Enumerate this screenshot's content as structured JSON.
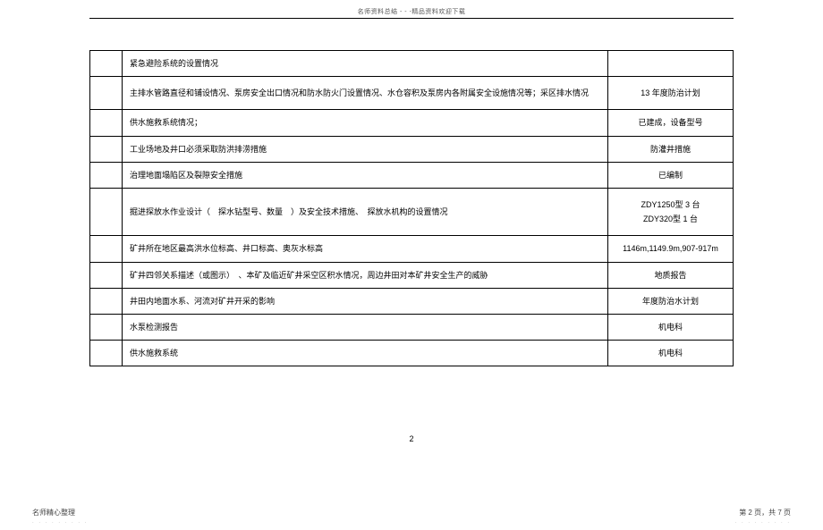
{
  "header": {
    "text": "名师资料总结 - - -精品资料欢迎下载"
  },
  "table": {
    "rows": [
      {
        "desc": "紧急避险系统的设置情况",
        "right": "",
        "tall": false
      },
      {
        "desc": "主排水管路直径和铺设情况、泵房安全出口情况和防水防火门设置情况、水仓容积及泵房内各附属安全设施情况等；采区排水情况",
        "right": "13 年度防治计划",
        "tall": true
      },
      {
        "desc": "供水施救系统情况；",
        "right": "已建成，设备型号",
        "tall": false
      },
      {
        "desc": "工业场地及井口必须采取防洪排涝措施",
        "right": "防灌井措施",
        "tall": false
      },
      {
        "desc": "治理地面塌陷区及裂隙安全措施",
        "right": "已编制",
        "tall": false
      },
      {
        "desc": "掘进探放水作业设计（　探水钻型号、数量　）及安全技术措施、　探放水机构的设置情况",
        "right": "ZDY1250型 3 台\nZDY320型 1 台",
        "tall": true
      },
      {
        "desc": "矿井所在地区最高洪水位标高、井口标高、奥灰水标高",
        "right": "1146m,1149.9m,907-917m",
        "tall": false
      },
      {
        "desc": "矿井四邻关系描述（或图示）　、本矿及临近矿井采空区积水情况，周边井田对本矿井安全生产的威胁",
        "right": "地质报告",
        "tall": false
      },
      {
        "desc": "井田内地面水系、河流对矿井开采的影响",
        "right": "年度防治水计划",
        "tall": false
      },
      {
        "desc": "水泵检测报告",
        "right": "机电科",
        "tall": false
      },
      {
        "desc": "供水施救系统",
        "right": "机电科",
        "tall": false
      }
    ]
  },
  "page_number": "2",
  "footer": {
    "left": "名师精心整理",
    "left_sub": ". . . . . . . . .",
    "right": "第 2 页，共 7 页",
    "right_sub": ". . . . . . . . ."
  }
}
